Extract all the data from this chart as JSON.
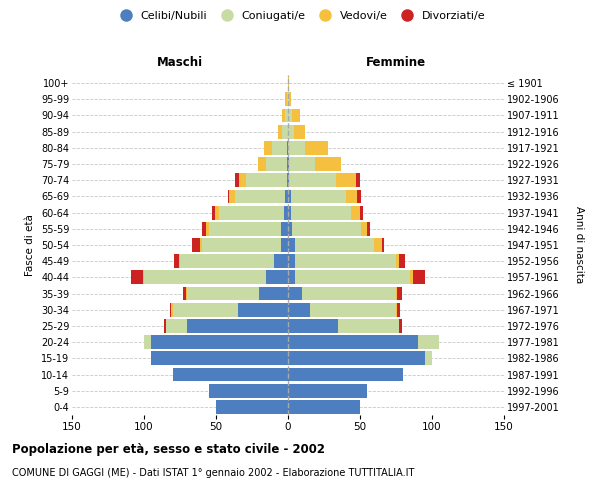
{
  "age_groups": [
    "0-4",
    "5-9",
    "10-14",
    "15-19",
    "20-24",
    "25-29",
    "30-34",
    "35-39",
    "40-44",
    "45-49",
    "50-54",
    "55-59",
    "60-64",
    "65-69",
    "70-74",
    "75-79",
    "80-84",
    "85-89",
    "90-94",
    "95-99",
    "100+"
  ],
  "birth_years": [
    "1997-2001",
    "1992-1996",
    "1987-1991",
    "1982-1986",
    "1977-1981",
    "1972-1976",
    "1967-1971",
    "1962-1966",
    "1957-1961",
    "1952-1956",
    "1947-1951",
    "1942-1946",
    "1937-1941",
    "1932-1936",
    "1927-1931",
    "1922-1926",
    "1917-1921",
    "1912-1916",
    "1907-1911",
    "1902-1906",
    "≤ 1901"
  ],
  "male": {
    "celibi": [
      50,
      55,
      80,
      95,
      95,
      70,
      35,
      20,
      15,
      10,
      5,
      5,
      3,
      2,
      1,
      1,
      1,
      0,
      0,
      0,
      0
    ],
    "coniugati": [
      0,
      0,
      0,
      0,
      5,
      15,
      45,
      50,
      85,
      65,
      55,
      50,
      45,
      35,
      28,
      14,
      10,
      4,
      2,
      1,
      0
    ],
    "vedovi": [
      0,
      0,
      0,
      0,
      0,
      0,
      1,
      1,
      1,
      1,
      1,
      2,
      3,
      4,
      5,
      6,
      6,
      3,
      2,
      1,
      0
    ],
    "divorziati": [
      0,
      0,
      0,
      0,
      0,
      1,
      1,
      2,
      8,
      3,
      6,
      3,
      2,
      1,
      3,
      0,
      0,
      0,
      0,
      0,
      0
    ]
  },
  "female": {
    "nubili": [
      50,
      55,
      80,
      95,
      90,
      35,
      15,
      10,
      5,
      5,
      5,
      3,
      2,
      2,
      1,
      1,
      0,
      0,
      0,
      0,
      0
    ],
    "coniugate": [
      0,
      0,
      0,
      5,
      15,
      42,
      60,
      65,
      80,
      70,
      55,
      48,
      42,
      38,
      32,
      18,
      12,
      4,
      3,
      1,
      0
    ],
    "vedove": [
      0,
      0,
      0,
      0,
      0,
      0,
      1,
      1,
      2,
      2,
      5,
      4,
      6,
      8,
      14,
      18,
      16,
      8,
      5,
      1,
      1
    ],
    "divorziate": [
      0,
      0,
      0,
      0,
      0,
      2,
      2,
      3,
      8,
      4,
      2,
      2,
      2,
      3,
      3,
      0,
      0,
      0,
      0,
      0,
      0
    ]
  },
  "colors": {
    "celibi": "#4d7ebf",
    "coniugati": "#c8dba4",
    "vedovi": "#f5c040",
    "divorziati": "#cc2222"
  },
  "xlim": 150,
  "title": "Popolazione per età, sesso e stato civile - 2002",
  "subtitle": "COMUNE DI GAGGI (ME) - Dati ISTAT 1° gennaio 2002 - Elaborazione TUTTITALIA.IT",
  "ylabel": "Fasce di età",
  "ylabel_right": "Anni di nascita",
  "label_maschi": "Maschi",
  "label_femmine": "Femmine",
  "legend_labels": [
    "Celibi/Nubili",
    "Coniugati/e",
    "Vedovi/e",
    "Divorziati/e"
  ],
  "background_color": "#ffffff",
  "grid_color": "#c8c8c8"
}
